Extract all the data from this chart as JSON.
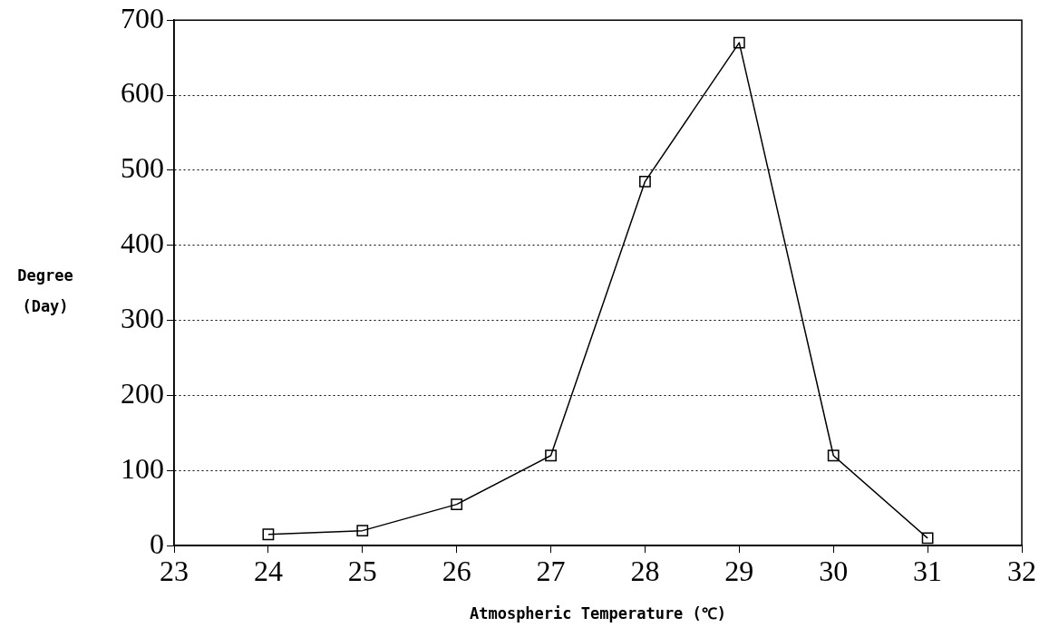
{
  "chart_data": {
    "type": "line",
    "xlabel": "Atmospheric Temperature (℃)",
    "ylabel": "Degree\n(Day)",
    "x": [
      24,
      25,
      26,
      27,
      28,
      29,
      30,
      31
    ],
    "series": [
      {
        "color": "#000000",
        "values": [
          15,
          20,
          55,
          120,
          485,
          670,
          120,
          10
        ]
      }
    ],
    "xlim": [
      23,
      32
    ],
    "xticks": [
      23,
      24,
      25,
      26,
      27,
      28,
      29,
      30,
      31,
      32
    ],
    "ylim": [
      0,
      700
    ],
    "yticks": [
      0,
      100,
      200,
      300,
      400,
      500,
      600,
      700
    ],
    "grid": "y",
    "marker": "square",
    "line_style": "solid",
    "legend": false
  }
}
